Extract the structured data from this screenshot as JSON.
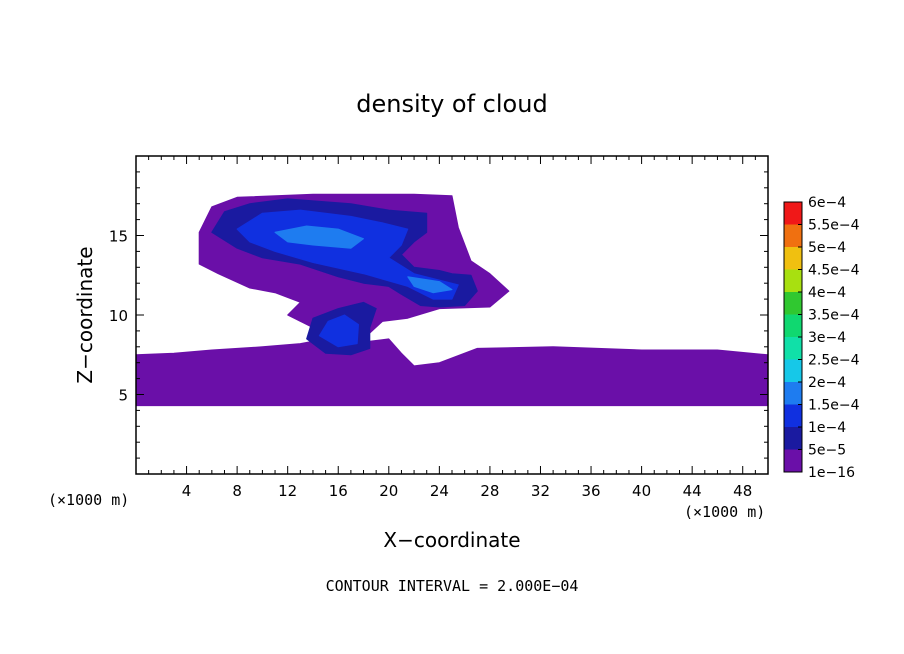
{
  "chart_data": {
    "type": "heatmap",
    "title": "density of cloud",
    "xlabel": "X−coordinate",
    "ylabel": "Z−coordinate",
    "x_unit_label": "(×1000 m)",
    "y_unit_label": "(×1000 m)",
    "xlim": [
      0,
      50
    ],
    "ylim": [
      0,
      20
    ],
    "x_ticks": [
      {
        "value": 4,
        "label": "4"
      },
      {
        "value": 8,
        "label": "8"
      },
      {
        "value": 12,
        "label": "12"
      },
      {
        "value": 16,
        "label": "16"
      },
      {
        "value": 20,
        "label": "20"
      },
      {
        "value": 24,
        "label": "24"
      },
      {
        "value": 28,
        "label": "28"
      },
      {
        "value": 32,
        "label": "32"
      },
      {
        "value": 36,
        "label": "36"
      },
      {
        "value": 40,
        "label": "40"
      },
      {
        "value": 44,
        "label": "44"
      },
      {
        "value": 48,
        "label": "48"
      }
    ],
    "y_ticks": [
      {
        "value": 5,
        "label": "5"
      },
      {
        "value": 10,
        "label": "10"
      },
      {
        "value": 15,
        "label": "15"
      }
    ],
    "colorbar": {
      "levels": [
        {
          "label": "1e−16",
          "color": "#6a0fa8"
        },
        {
          "label": "5e−5",
          "color": "#1a1aa0"
        },
        {
          "label": "1e−4",
          "color": "#1030e0"
        },
        {
          "label": "1.5e−4",
          "color": "#1e7cf0"
        },
        {
          "label": "2e−4",
          "color": "#16c8e8"
        },
        {
          "label": "2.5e−4",
          "color": "#10e0a8"
        },
        {
          "label": "3e−4",
          "color": "#10d870"
        },
        {
          "label": "3.5e−4",
          "color": "#30c830"
        },
        {
          "label": "4e−4",
          "color": "#a8e010"
        },
        {
          "label": "4.5e−4",
          "color": "#f0c010"
        },
        {
          "label": "5e−4",
          "color": "#f07010"
        },
        {
          "label": "5.5e−4",
          "color": "#f01818"
        },
        {
          "label": "6e−4",
          "color": "#f08888"
        }
      ]
    },
    "regions": [
      {
        "level": 0,
        "points": [
          [
            0,
            4.3
          ],
          [
            50,
            4.3
          ],
          [
            50,
            7.5
          ],
          [
            46,
            7.8
          ],
          [
            40,
            7.8
          ],
          [
            33,
            8.0
          ],
          [
            27,
            7.9
          ],
          [
            24,
            7.0
          ],
          [
            22,
            6.8
          ],
          [
            21,
            7.6
          ],
          [
            20,
            8.5
          ],
          [
            18,
            8.3
          ],
          [
            15,
            8.5
          ],
          [
            13,
            8.2
          ],
          [
            10,
            8.0
          ],
          [
            6,
            7.8
          ],
          [
            3,
            7.6
          ],
          [
            0,
            7.5
          ]
        ]
      },
      {
        "level": 0,
        "points": [
          [
            12,
            10
          ],
          [
            13,
            10.8
          ],
          [
            11,
            11.4
          ],
          [
            9,
            11.7
          ],
          [
            6.5,
            12.6
          ],
          [
            5,
            13.2
          ],
          [
            5,
            15.2
          ],
          [
            6,
            16.8
          ],
          [
            8,
            17.4
          ],
          [
            14,
            17.6
          ],
          [
            22,
            17.6
          ],
          [
            25,
            17.5
          ],
          [
            25.5,
            15.5
          ],
          [
            26.5,
            13.4
          ],
          [
            28,
            12.6
          ],
          [
            29.5,
            11.5
          ],
          [
            28,
            10.5
          ],
          [
            24,
            10.4
          ],
          [
            21.5,
            9.8
          ],
          [
            19.5,
            9.6
          ],
          [
            18,
            8.5
          ],
          [
            15,
            8.5
          ],
          [
            14,
            9.2
          ]
        ]
      },
      {
        "level": 1,
        "points": [
          [
            6,
            15.2
          ],
          [
            7,
            16.5
          ],
          [
            9,
            17.0
          ],
          [
            12,
            17.3
          ],
          [
            17,
            17.0
          ],
          [
            20,
            16.6
          ],
          [
            23,
            16.4
          ],
          [
            23,
            15.2
          ],
          [
            22,
            14.6
          ],
          [
            21,
            13.8
          ],
          [
            22,
            13.0
          ],
          [
            24,
            12.8
          ],
          [
            25,
            12.6
          ],
          [
            26.5,
            12.5
          ],
          [
            27,
            11.5
          ],
          [
            26,
            10.6
          ],
          [
            24,
            10.5
          ],
          [
            22.5,
            10.6
          ],
          [
            21,
            11.3
          ],
          [
            20,
            11.8
          ],
          [
            18,
            12.0
          ],
          [
            16,
            12.4
          ],
          [
            13,
            13.2
          ],
          [
            10,
            13.6
          ],
          [
            8,
            14.2
          ]
        ]
      },
      {
        "level": 1,
        "points": [
          [
            13.5,
            8.5
          ],
          [
            15,
            7.6
          ],
          [
            17,
            7.5
          ],
          [
            18.5,
            7.9
          ],
          [
            18.5,
            9.2
          ],
          [
            19,
            10.4
          ],
          [
            18,
            10.8
          ],
          [
            16,
            10.4
          ],
          [
            14,
            9.8
          ]
        ]
      },
      {
        "level": 2,
        "points": [
          [
            8,
            15.4
          ],
          [
            10,
            16.4
          ],
          [
            13,
            16.6
          ],
          [
            17,
            16.2
          ],
          [
            19.5,
            15.8
          ],
          [
            21.5,
            15.4
          ],
          [
            21,
            14.4
          ],
          [
            20,
            13.6
          ],
          [
            22,
            12.6
          ],
          [
            25.5,
            11.9
          ],
          [
            25,
            11.0
          ],
          [
            23.5,
            11.0
          ],
          [
            21.5,
            11.8
          ],
          [
            18,
            12.6
          ],
          [
            14,
            13.3
          ],
          [
            11,
            14.0
          ],
          [
            9,
            14.6
          ]
        ]
      },
      {
        "level": 2,
        "points": [
          [
            14.5,
            8.7
          ],
          [
            16,
            8.0
          ],
          [
            17.5,
            8.2
          ],
          [
            17.6,
            9.4
          ],
          [
            16.5,
            10.0
          ],
          [
            15.2,
            9.6
          ]
        ]
      },
      {
        "level": 3,
        "points": [
          [
            11,
            15.2
          ],
          [
            13.5,
            15.6
          ],
          [
            16,
            15.4
          ],
          [
            18,
            14.8
          ],
          [
            17,
            14.2
          ],
          [
            14,
            14.4
          ],
          [
            12,
            14.6
          ]
        ]
      },
      {
        "level": 3,
        "points": [
          [
            21.5,
            12.4
          ],
          [
            24,
            12.1
          ],
          [
            25,
            11.6
          ],
          [
            23.5,
            11.4
          ],
          [
            22,
            11.8
          ]
        ]
      }
    ],
    "annotation": "CONTOUR INTERVAL = 2.000E−04"
  }
}
